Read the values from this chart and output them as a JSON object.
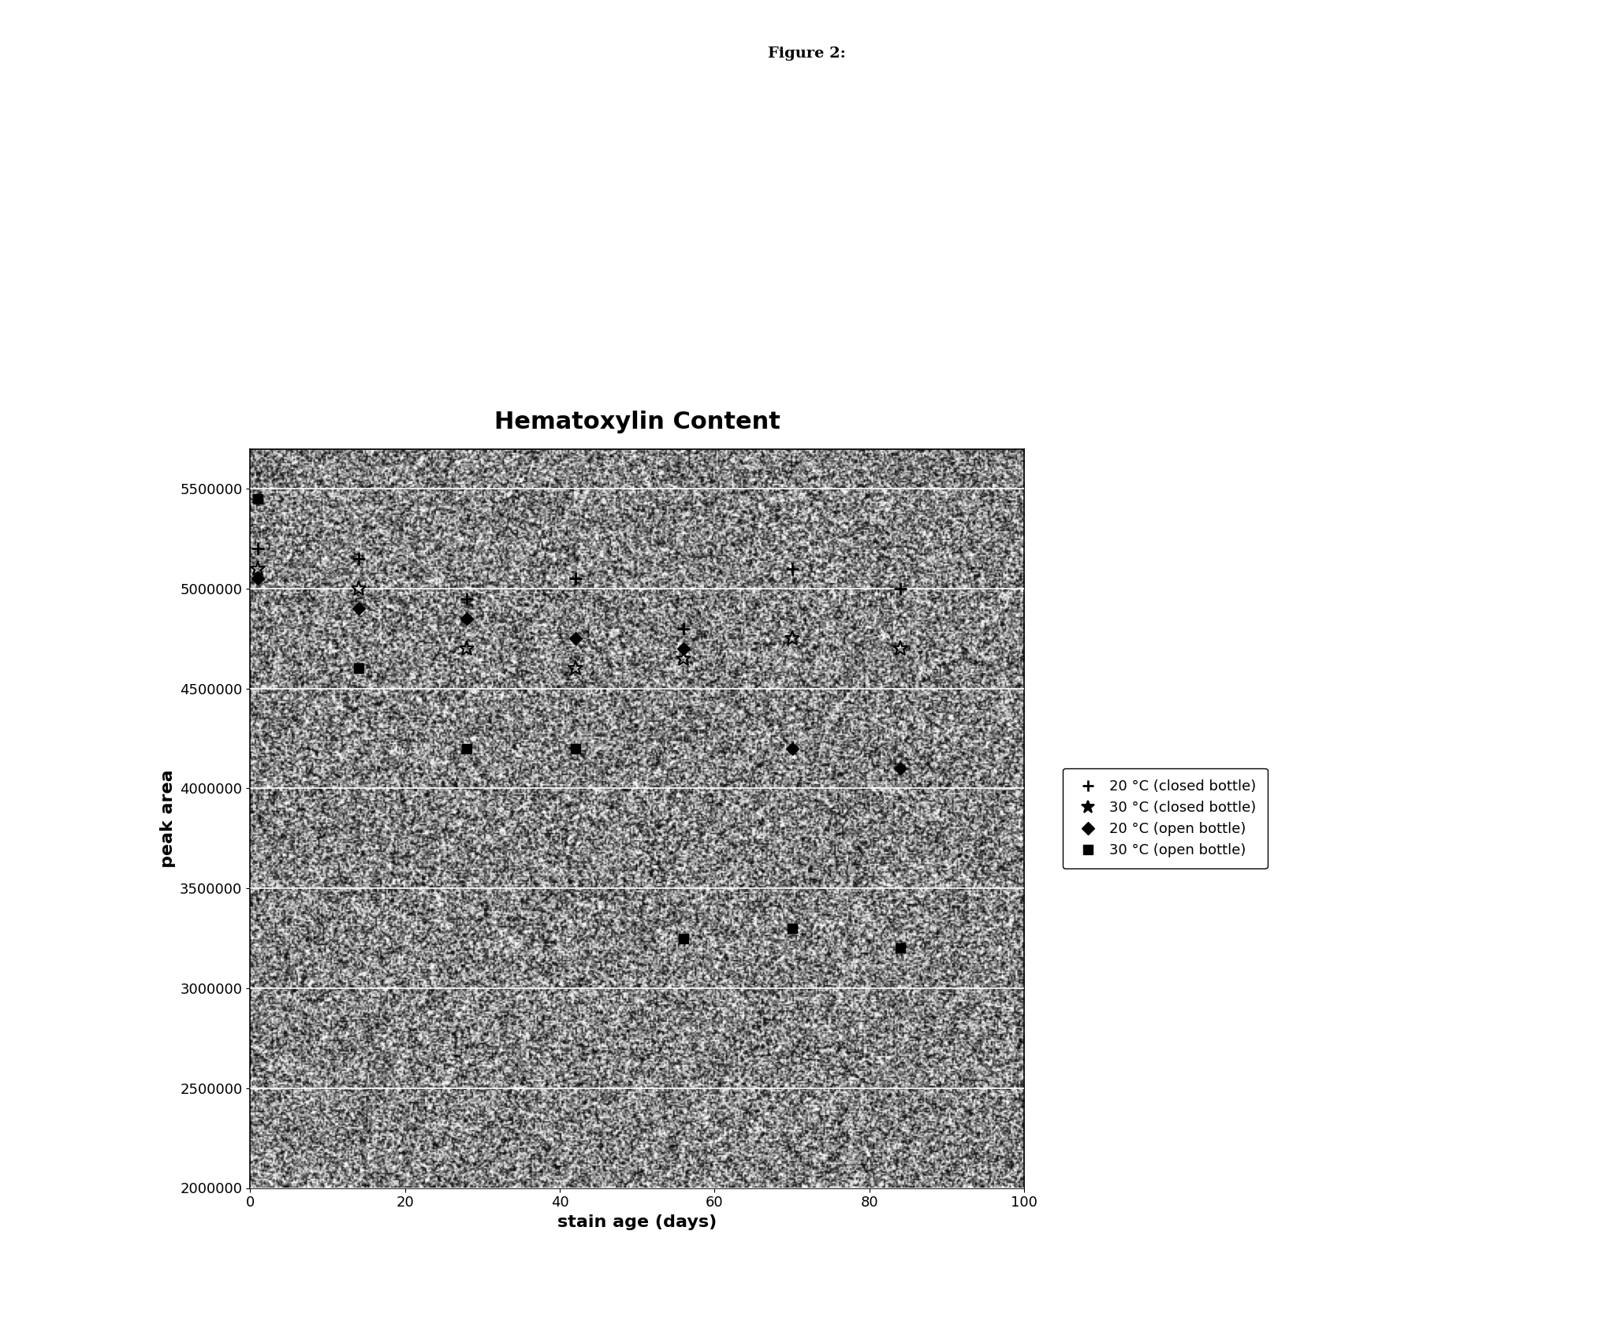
{
  "title": "Hematoxylin Content",
  "figure_label": "Figure 2:",
  "xlabel": "stain age (days)",
  "ylabel": "peak area",
  "ylim": [
    2000000,
    5700000
  ],
  "xlim": [
    0,
    100
  ],
  "yticks": [
    2000000,
    2500000,
    3000000,
    3500000,
    4000000,
    4500000,
    5000000,
    5500000
  ],
  "xticks": [
    0,
    20,
    40,
    60,
    80,
    100
  ],
  "series": [
    {
      "label": "20 °C (closed bottle)",
      "marker": "+",
      "x": [
        1,
        14,
        28,
        42,
        56,
        70,
        84
      ],
      "y": [
        5200000,
        5150000,
        4950000,
        5050000,
        4800000,
        5100000,
        5000000
      ]
    },
    {
      "label": "30 °C (closed bottle)",
      "marker": "*",
      "x": [
        1,
        14,
        28,
        42,
        56,
        70,
        84
      ],
      "y": [
        5100000,
        5000000,
        4700000,
        4600000,
        4650000,
        4750000,
        4700000
      ]
    },
    {
      "label": "20 °C (open bottle)",
      "marker": "D",
      "x": [
        1,
        14,
        28,
        42,
        56,
        70,
        84
      ],
      "y": [
        5050000,
        4900000,
        4850000,
        4750000,
        4700000,
        4200000,
        4100000
      ]
    },
    {
      "label": "30 °C (open bottle)",
      "marker": "s",
      "x": [
        1,
        14,
        28,
        42,
        56,
        70,
        84
      ],
      "y": [
        5450000,
        4600000,
        4200000,
        4200000,
        3250000,
        3300000,
        3200000
      ]
    }
  ],
  "background_color": "#ffffff",
  "grid_color": "#ffffff",
  "title_fontsize": 22,
  "axis_label_fontsize": 16,
  "tick_fontsize": 13,
  "legend_fontsize": 13,
  "fig_label_fontsize": 14
}
